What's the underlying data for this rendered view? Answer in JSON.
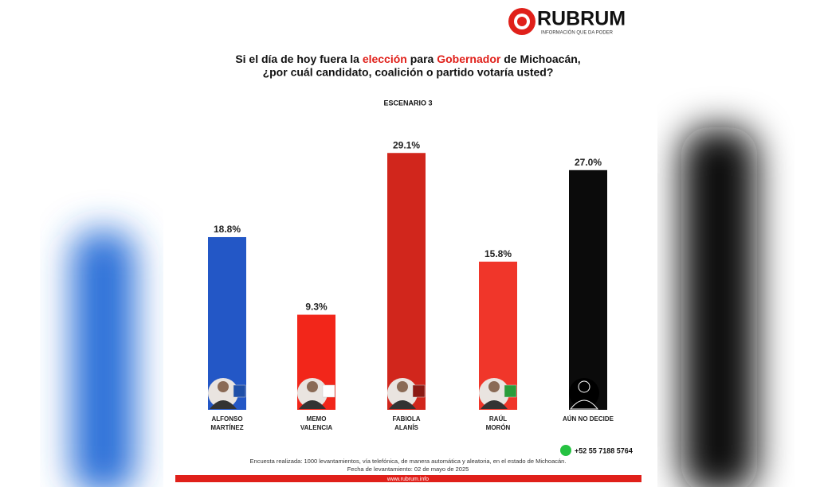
{
  "logo": {
    "name": "RUBRUM",
    "tagline": "INFORMACIÓN QUE DA PODER"
  },
  "chart_data": {
    "type": "bar",
    "title": {
      "line1": [
        "Si el día de hoy fuera la ",
        "elección",
        " para ",
        "Gobernador",
        " de Michoacán,"
      ],
      "line2": "¿por cuál candidato, coalición o partido votaría usted?"
    },
    "subtitle": "ESCENARIO 3",
    "categories": [
      [
        "ALFONSO",
        "MARTÍNEZ"
      ],
      [
        "MEMO",
        "VALENCIA"
      ],
      [
        "FABIOLA",
        "ALANÍS"
      ],
      [
        "RAÚL",
        "MORÓN"
      ],
      [
        "AÚN NO DECIDE"
      ]
    ],
    "values": [
      18.8,
      9.3,
      29.1,
      15.8,
      27.0
    ],
    "value_labels": [
      "18.8%",
      "9.3%",
      "29.1%",
      "15.8%",
      "27.0%"
    ],
    "colors": [
      "#2357c6",
      "#f2261a",
      "#d1261c",
      "#f0362a",
      "#0b0b0b"
    ],
    "ylim": [
      0,
      30
    ]
  },
  "footer": {
    "phone": "+52 55 7188 5764",
    "note": "Encuesta realizada: 1000 levantamientos, vía telefónica, de manera automática y aleatoria, en el estado de Michoacán.",
    "date": "Fecha de levantamiento: 02 de mayo de 2025",
    "url": "www.rubrum.info"
  }
}
